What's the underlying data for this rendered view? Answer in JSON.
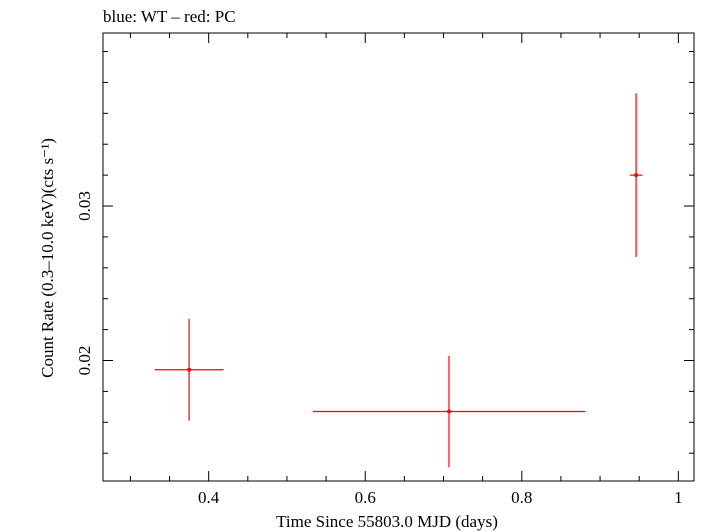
{
  "chart_data": {
    "type": "scatter",
    "title": "blue: WT – red: PC",
    "xlabel": "Time Since 55803.0 MJD (days)",
    "ylabel": "Count Rate (0.3–10.0 keV)(cts s⁻¹)",
    "xlim": [
      0.265,
      1.02
    ],
    "ylim": [
      0.0122,
      0.0412
    ],
    "x_ticks": [
      {
        "value": 0.4,
        "label": "0.4"
      },
      {
        "value": 0.6,
        "label": "0.6"
      },
      {
        "value": 0.8,
        "label": "0.8"
      },
      {
        "value": 1.0,
        "label": "1"
      }
    ],
    "y_ticks": [
      {
        "value": 0.02,
        "label": "0.02"
      },
      {
        "value": 0.03,
        "label": "0.03"
      }
    ],
    "x_minor_step": 0.05,
    "y_minor_step": 0.002,
    "grid": false,
    "series": [
      {
        "color": "#ff0000",
        "points": [
          {
            "x": 0.375,
            "xerr_low": 0.044,
            "xerr_high": 0.044,
            "y": 0.0194,
            "yerr_low": 0.0033,
            "yerr_high": 0.0033
          },
          {
            "x": 0.707,
            "xerr_low": 0.174,
            "xerr_high": 0.174,
            "y": 0.0167,
            "yerr_low": 0.0036,
            "yerr_high": 0.0036
          },
          {
            "x": 0.946,
            "xerr_low": 0.008,
            "xerr_high": 0.008,
            "y": 0.032,
            "yerr_low": 0.0053,
            "yerr_high": 0.0053
          }
        ]
      }
    ]
  }
}
